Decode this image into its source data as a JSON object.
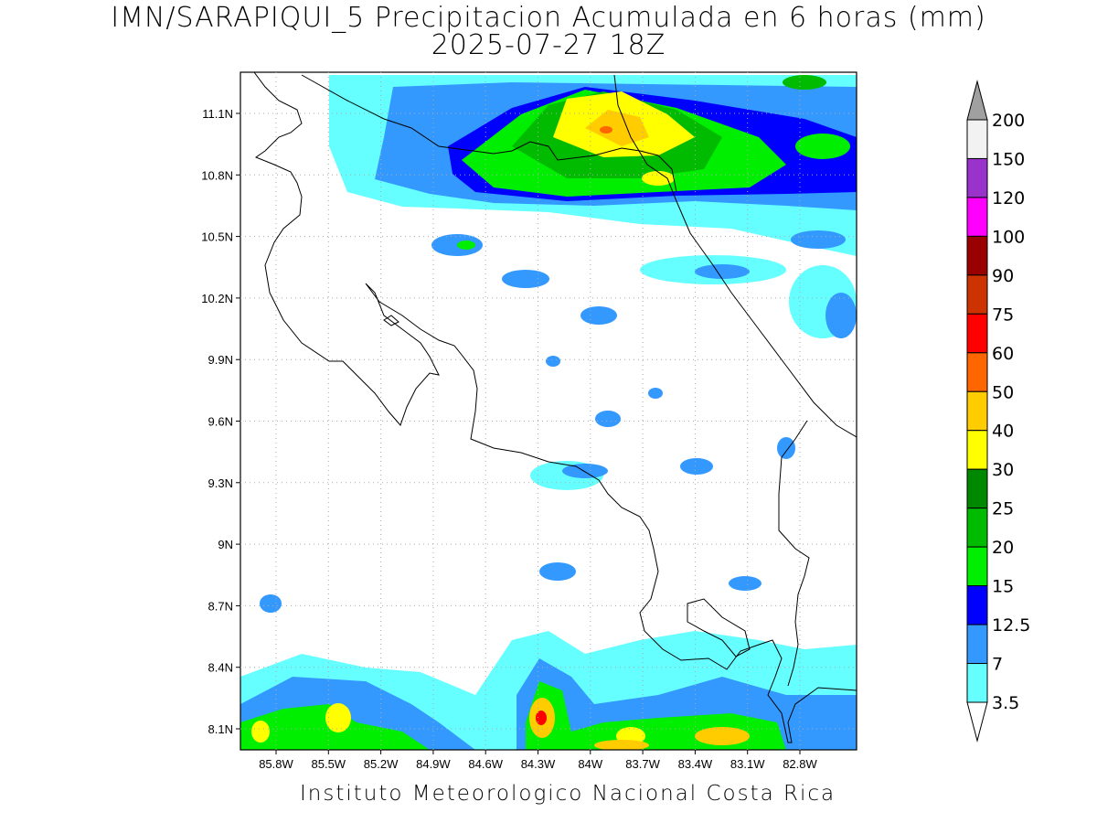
{
  "title": {
    "line1": "IMN/SARAPIQUI_5 Precipitacion Acumulada en 6 horas (mm)",
    "line2": "2025-07-27 18Z"
  },
  "footer": "Instituto Meteorologico Nacional Costa Rica",
  "map": {
    "lat_labels": [
      "11.1N",
      "10.8N",
      "10.5N",
      "10.2N",
      "9.9N",
      "9.6N",
      "9.3N",
      "9N",
      "8.7N",
      "8.4N",
      "8.1N"
    ],
    "lon_labels": [
      "85.8W",
      "85.5W",
      "85.2W",
      "84.9W",
      "84.6W",
      "84.3W",
      "84W",
      "83.7W",
      "83.4W",
      "83.1W",
      "82.8W"
    ],
    "grid": "dotted"
  },
  "colorbar": {
    "labels": [
      "200",
      "150",
      "120",
      "100",
      "90",
      "75",
      "60",
      "50",
      "40",
      "30",
      "25",
      "20",
      "15",
      "12.5",
      "7",
      "3.5"
    ],
    "colors": [
      "#f2f2f2",
      "#9933cc",
      "#ff00ff",
      "#990000",
      "#cc3300",
      "#ff0000",
      "#ff6600",
      "#ffcc00",
      "#ffff00",
      "#008800",
      "#00bb00",
      "#00ee00",
      "#0000ff",
      "#3399ff",
      "#66ffff"
    ],
    "top_triangle_color": "#a0a0a0",
    "bottom_triangle_color": "#ffffff"
  }
}
